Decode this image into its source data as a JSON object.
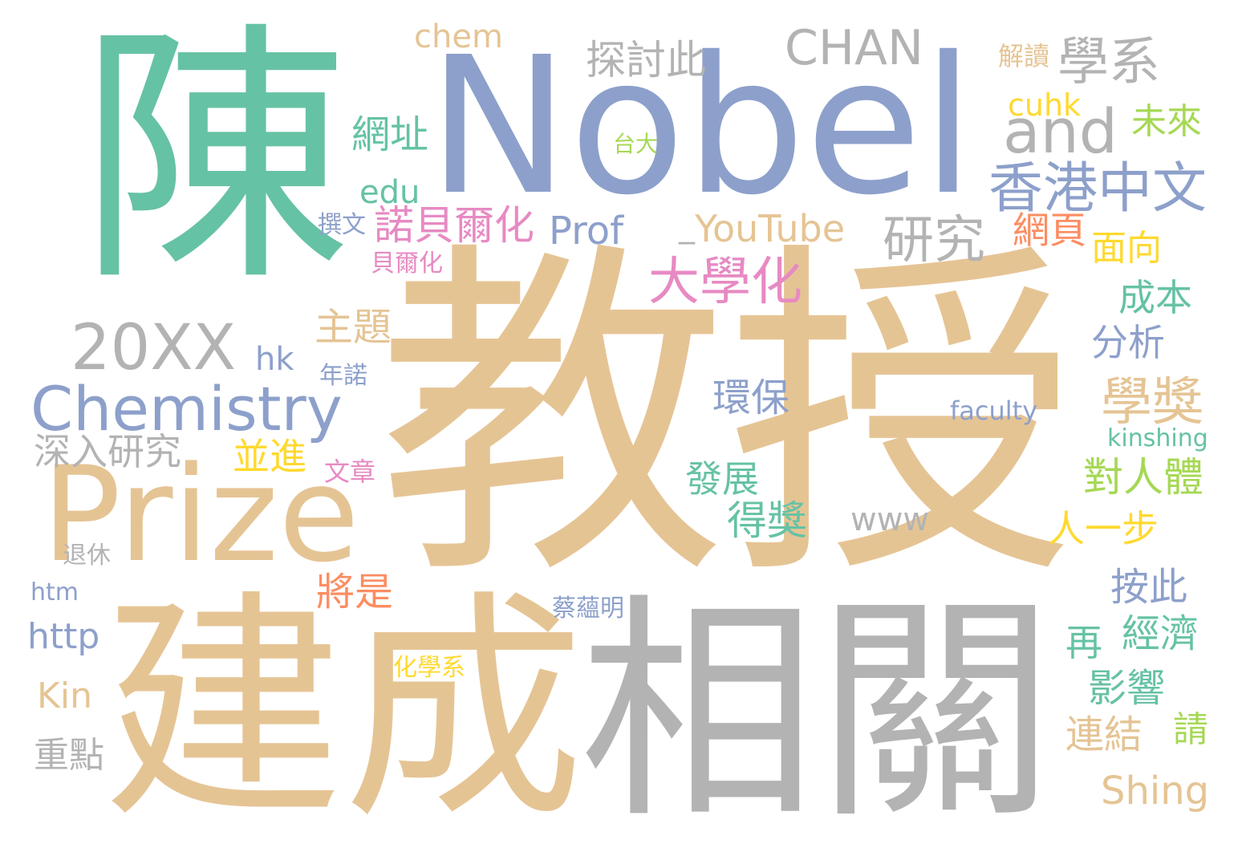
{
  "palette": {
    "green": "#66c2a5",
    "orange": "#fc8d62",
    "blue": "#8da0cb",
    "pink": "#e78ac3",
    "lime": "#a6d854",
    "yellow": "#ffd92f",
    "tan": "#e5c494",
    "gray": "#b3b3b3"
  },
  "words": {
    "chen": "陳",
    "nobel": "Nobel",
    "jiaoshou": "教授",
    "jiancheng": "建成",
    "xiangguan": "相關",
    "prize": "Prize",
    "chemistry": "Chemistry",
    "year_20xx": "20XX",
    "chan": "CHAN",
    "and": "and",
    "xiangzhong": "香港中文",
    "xuexi": "學系",
    "yanjiu": "研究",
    "daxuehua": "大學化",
    "xuejiang": "學獎",
    "tantaoci": "探討此",
    "chem": "chem",
    "jiedu": "解讀",
    "cuhk": "cuhk",
    "weilai": "未來",
    "taida": "台大",
    "wangzhi": "網址",
    "edu": "edu",
    "zhuanwen": "撰文",
    "nuobeierhua": "諾貝爾化",
    "prof": "Prof",
    "youtube": "YouTube",
    "underscore": "_",
    "wangye": "網頁",
    "mianxiang": "面向",
    "beierhua": "貝爾化",
    "chengben": "成本",
    "fenxi": "分析",
    "zhuti": "主題",
    "hk": "hk",
    "nianuo": "年諾",
    "huanbao": "環保",
    "faculty": "faculty",
    "kinshing": "kinshing",
    "shenruyanjiu": "深入研究",
    "bingjin": "並進",
    "wenzhang": "文章",
    "duirenti": "對人體",
    "fazhan": "發展",
    "dejiang": "得獎",
    "www": "www",
    "renyibu": "人一步",
    "tuixiu": "退休",
    "jiangshi": "將是",
    "anci": "按此",
    "htm": "htm",
    "caiyunming": "蔡蘊明",
    "http": "http",
    "zai": "再",
    "jingji": "經濟",
    "huaxuexi": "化學系",
    "yingxiang": "影響",
    "kin": "Kin",
    "lianjie": "連結",
    "qing": "請",
    "zhongdian": "重點",
    "shing": "Shing"
  }
}
